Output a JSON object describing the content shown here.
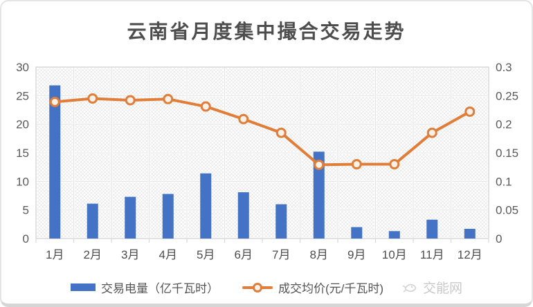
{
  "card": {
    "title": "云南省月度集中撮合交易走势"
  },
  "legend": {
    "items": [
      {
        "label": "交易电量（亿千瓦时）",
        "swatch": "bar-swatch"
      },
      {
        "label": "成交均价(元/千瓦时)",
        "swatch": "line-marker-swatch"
      }
    ]
  },
  "watermark": {
    "label": "交能网",
    "icon": "jiaonengwang-logo-icon"
  },
  "colors": {
    "bar": "#4472C4",
    "line": "#E07E39",
    "marker_fill": "#FBF1E8",
    "title_text": "#4D4D4D",
    "axis_text": "#595959",
    "x_label_text": "#4D4D4D",
    "grid": "#E4E4E4",
    "hatch": "#E0E0E0",
    "plot_border": "#D6D6D6",
    "watermark_text": "#C9C9C9"
  },
  "chart_data": {
    "type": "combo: bar + line, dual axis",
    "title": "云南省月度集中撮合交易走势",
    "categories": [
      "1月",
      "2月",
      "3月",
      "4月",
      "5月",
      "6月",
      "7月",
      "8月",
      "9月",
      "10月",
      "11月",
      "12月"
    ],
    "series": [
      {
        "name": "交易电量（亿千瓦时）",
        "type": "bar",
        "axis": "left",
        "values": [
          26.8,
          6.1,
          7.3,
          7.8,
          11.4,
          8.1,
          6.0,
          15.2,
          2.0,
          1.3,
          3.3,
          1.7
        ]
      },
      {
        "name": "成交均价(元/千瓦时)",
        "type": "line",
        "axis": "right",
        "values": [
          0.239,
          0.245,
          0.242,
          0.244,
          0.231,
          0.209,
          0.185,
          0.129,
          0.13,
          0.13,
          0.185,
          0.222
        ]
      }
    ],
    "left_axis": {
      "min": 0,
      "max": 30,
      "step": 5,
      "ticks": [
        "0",
        "5",
        "10",
        "15",
        "20",
        "25",
        "30"
      ]
    },
    "right_axis": {
      "min": 0,
      "max": 0.3,
      "step": 0.05,
      "ticks": [
        "0",
        "0.05",
        "0.1",
        "0.15",
        "0.2",
        "0.25",
        "0.3"
      ]
    },
    "grid": true,
    "plot_background": "diagonal-crosshatch",
    "legend_position": "bottom"
  }
}
